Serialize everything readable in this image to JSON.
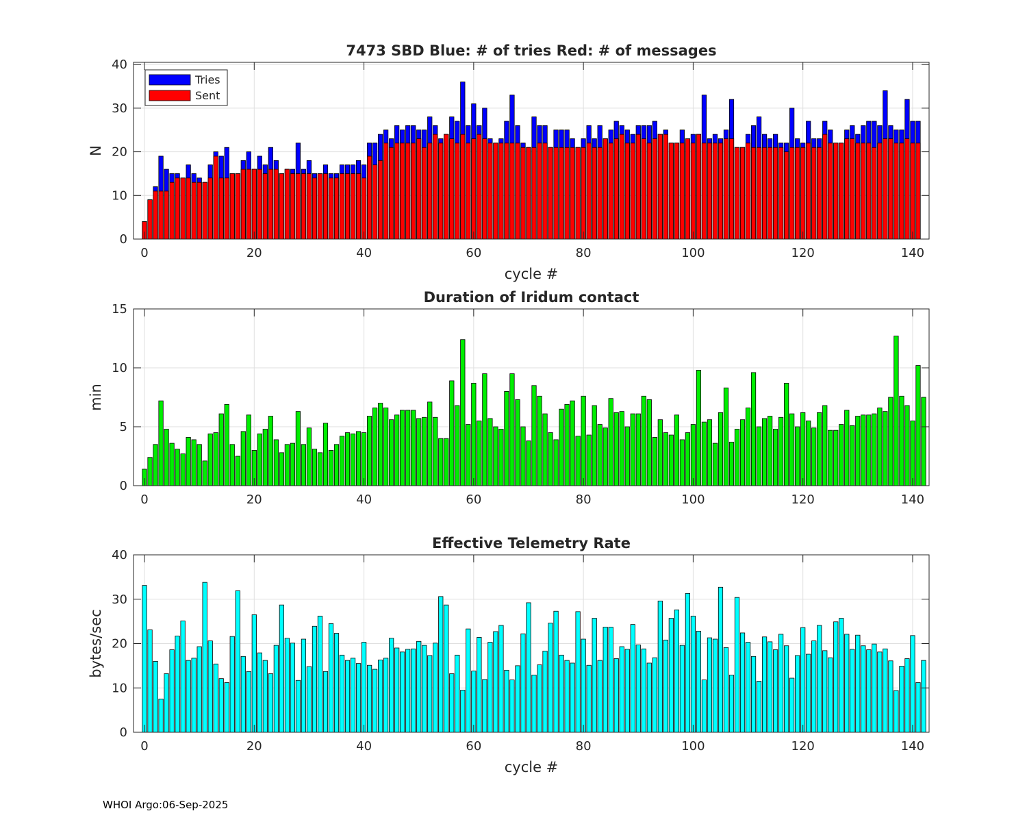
{
  "footer": {
    "org": "WHOI Argo",
    "date": "06-Sep-2025"
  },
  "colors": {
    "tries": "#0000ff",
    "sent": "#ff0000",
    "duration": "#00ee00",
    "rate": "#00ffff"
  },
  "chart_data": [
    {
      "type": "bar",
      "stacked": "overlay",
      "title": "7473 SBD  Blue: # of tries   Red: # of messages",
      "xlabel": "cycle #",
      "ylabel": "N",
      "xlim": [
        -2,
        143
      ],
      "ylim": [
        0,
        40.5
      ],
      "xticks": [
        0,
        20,
        40,
        60,
        80,
        100,
        120,
        140
      ],
      "yticks": [
        0,
        10,
        20,
        30,
        40
      ],
      "grid": true,
      "legend": {
        "placement": "top-left",
        "entries": [
          "Tries",
          "Sent"
        ]
      },
      "x_start": 0,
      "series": [
        {
          "name": "Tries",
          "color": "#0000ff",
          "values": [
            4,
            9,
            12,
            19,
            16,
            15,
            15,
            14,
            17,
            15,
            14,
            13,
            17,
            20,
            19,
            21,
            15,
            15,
            18,
            20,
            16,
            19,
            17,
            21,
            18,
            15,
            16,
            16,
            22,
            16,
            18,
            15,
            15,
            17,
            15,
            15,
            17,
            17,
            17,
            18,
            17,
            22,
            22,
            24,
            25,
            23,
            26,
            25,
            26,
            26,
            25,
            25,
            28,
            26,
            23,
            24,
            28,
            27,
            36,
            26,
            31,
            26,
            30,
            23,
            22,
            23,
            27,
            33,
            26,
            22,
            21,
            28,
            26,
            26,
            21,
            25,
            25,
            25,
            23,
            21,
            23,
            26,
            23,
            26,
            23,
            25,
            27,
            26,
            25,
            24,
            26,
            26,
            26,
            27,
            24,
            25,
            22,
            22,
            25,
            22,
            24,
            24,
            33,
            23,
            24,
            23,
            25,
            32,
            21,
            21,
            24,
            26,
            28,
            24,
            23,
            24,
            22,
            22,
            30,
            23,
            22,
            27,
            23,
            23,
            27,
            25,
            22,
            22,
            25,
            26,
            24,
            26,
            27,
            27,
            26,
            34,
            26,
            25,
            25,
            32,
            27,
            27
          ]
        },
        {
          "name": "Sent",
          "color": "#ff0000",
          "values": [
            4,
            9,
            11,
            11,
            11,
            13,
            14,
            14,
            14,
            13,
            13,
            13,
            14,
            19,
            14,
            14,
            15,
            15,
            16,
            16,
            16,
            16,
            15,
            16,
            16,
            15,
            16,
            15,
            15,
            15,
            15,
            14,
            15,
            15,
            14,
            14,
            15,
            15,
            15,
            15,
            14,
            19,
            17,
            18,
            22,
            21,
            22,
            22,
            22,
            22,
            23,
            21,
            22,
            24,
            22,
            24,
            23,
            22,
            24,
            22,
            23,
            24,
            23,
            22,
            22,
            22,
            22,
            22,
            22,
            21,
            21,
            21,
            22,
            22,
            21,
            21,
            21,
            21,
            21,
            21,
            21,
            22,
            21,
            21,
            23,
            22,
            23,
            24,
            22,
            22,
            24,
            23,
            22,
            23,
            24,
            24,
            22,
            22,
            22,
            23,
            22,
            24,
            22,
            22,
            22,
            22,
            23,
            23,
            21,
            21,
            22,
            21,
            21,
            21,
            21,
            21,
            21,
            20,
            21,
            21,
            21,
            22,
            21,
            21,
            24,
            22,
            22,
            22,
            23,
            23,
            22,
            22,
            22,
            21,
            22,
            23,
            23,
            22,
            22,
            23,
            22,
            22
          ]
        }
      ]
    },
    {
      "type": "bar",
      "title": "Duration of Iridum contact",
      "xlabel": "",
      "ylabel": "min",
      "xlim": [
        -2,
        143
      ],
      "ylim": [
        0,
        15
      ],
      "xticks": [
        0,
        20,
        40,
        60,
        80,
        100,
        120,
        140
      ],
      "yticks": [
        0,
        5,
        10,
        15
      ],
      "grid": true,
      "x_start": 0,
      "series": [
        {
          "name": "Duration",
          "color": "#00ee00",
          "values": [
            1.4,
            2.4,
            3.5,
            7.2,
            4.8,
            3.6,
            3.1,
            2.7,
            4.1,
            3.9,
            3.5,
            2.1,
            4.4,
            4.5,
            6.1,
            6.9,
            3.5,
            2.5,
            4.6,
            6.0,
            3.0,
            4.4,
            4.8,
            5.9,
            3.9,
            2.8,
            3.5,
            3.6,
            6.3,
            3.5,
            4.9,
            3.1,
            2.8,
            5.3,
            3.0,
            3.5,
            4.2,
            4.5,
            4.4,
            4.6,
            4.5,
            5.9,
            6.6,
            7.0,
            6.6,
            5.6,
            6.0,
            6.4,
            6.4,
            6.4,
            5.7,
            5.8,
            7.1,
            5.8,
            4.0,
            4.0,
            8.9,
            6.8,
            12.4,
            5.2,
            8.7,
            5.5,
            9.5,
            5.7,
            5.0,
            4.8,
            8.0,
            9.5,
            7.3,
            5.0,
            3.8,
            8.5,
            7.6,
            6.1,
            4.5,
            3.9,
            6.5,
            6.9,
            7.2,
            4.2,
            7.6,
            4.3,
            6.8,
            5.2,
            4.9,
            7.4,
            6.2,
            6.3,
            5.0,
            6.1,
            6.1,
            7.6,
            7.3,
            4.1,
            5.6,
            4.5,
            4.3,
            6.0,
            3.9,
            4.5,
            5.2,
            9.8,
            5.4,
            5.6,
            3.6,
            6.2,
            8.3,
            3.7,
            4.8,
            5.6,
            6.6,
            9.6,
            5.0,
            5.7,
            5.9,
            4.8,
            5.8,
            8.7,
            6.1,
            5.0,
            6.2,
            5.5,
            4.9,
            6.2,
            6.8,
            4.7,
            4.7,
            5.2,
            6.4,
            5.1,
            5.9,
            6.0,
            6.0,
            6.1,
            6.6,
            6.3,
            7.5,
            12.7,
            7.6,
            6.8,
            5.5,
            10.2,
            7.5
          ]
        }
      ]
    },
    {
      "type": "bar",
      "title": "Effective Telemetry Rate",
      "xlabel": "cycle #",
      "ylabel": "bytes/sec",
      "xlim": [
        -2,
        143
      ],
      "ylim": [
        0,
        40
      ],
      "xticks": [
        0,
        20,
        40,
        60,
        80,
        100,
        120,
        140
      ],
      "yticks": [
        0,
        10,
        20,
        30,
        40
      ],
      "grid": true,
      "x_start": 0,
      "series": [
        {
          "name": "Rate",
          "color": "#00ffff",
          "values": [
            33.1,
            23.1,
            16.0,
            7.5,
            13.2,
            18.6,
            21.7,
            25.1,
            16.2,
            16.7,
            19.3,
            33.8,
            20.6,
            15.4,
            12.1,
            11.2,
            21.6,
            31.9,
            17.1,
            13.7,
            26.5,
            17.9,
            16.2,
            13.2,
            19.6,
            28.7,
            21.2,
            20.1,
            11.7,
            21.0,
            14.8,
            23.9,
            26.2,
            13.7,
            24.5,
            22.3,
            17.4,
            16.2,
            16.7,
            15.5,
            20.3,
            15.1,
            14.2,
            16.3,
            16.7,
            21.2,
            19.0,
            18.1,
            18.7,
            18.8,
            20.5,
            19.6,
            17.3,
            20.1,
            30.6,
            28.7,
            13.2,
            17.4,
            9.5,
            23.3,
            13.8,
            21.4,
            11.9,
            20.3,
            22.7,
            24.1,
            14.0,
            11.8,
            15.0,
            22.2,
            29.2,
            12.9,
            15.2,
            18.3,
            24.6,
            27.3,
            17.4,
            16.2,
            15.6,
            27.2,
            21.0,
            15.1,
            25.7,
            16.2,
            23.7,
            23.7,
            16.6,
            19.3,
            18.7,
            24.3,
            19.7,
            18.8,
            15.6,
            16.8,
            29.6,
            20.8,
            25.7,
            27.6,
            19.6,
            31.3,
            26.2,
            22.8,
            11.8,
            21.3,
            21.0,
            32.7,
            19.1,
            12.9,
            30.4,
            22.4,
            20.3,
            17.1,
            11.5,
            21.5,
            20.4,
            18.6,
            22.1,
            19.5,
            12.2,
            17.3,
            23.6,
            17.6,
            20.6,
            24.1,
            18.4,
            16.8,
            24.9,
            25.7,
            22.1,
            18.7,
            21.9,
            19.5,
            18.6,
            19.9,
            18.1,
            18.8,
            16.1,
            9.4,
            14.9,
            16.6,
            21.8,
            11.2,
            16.2
          ]
        }
      ]
    }
  ]
}
